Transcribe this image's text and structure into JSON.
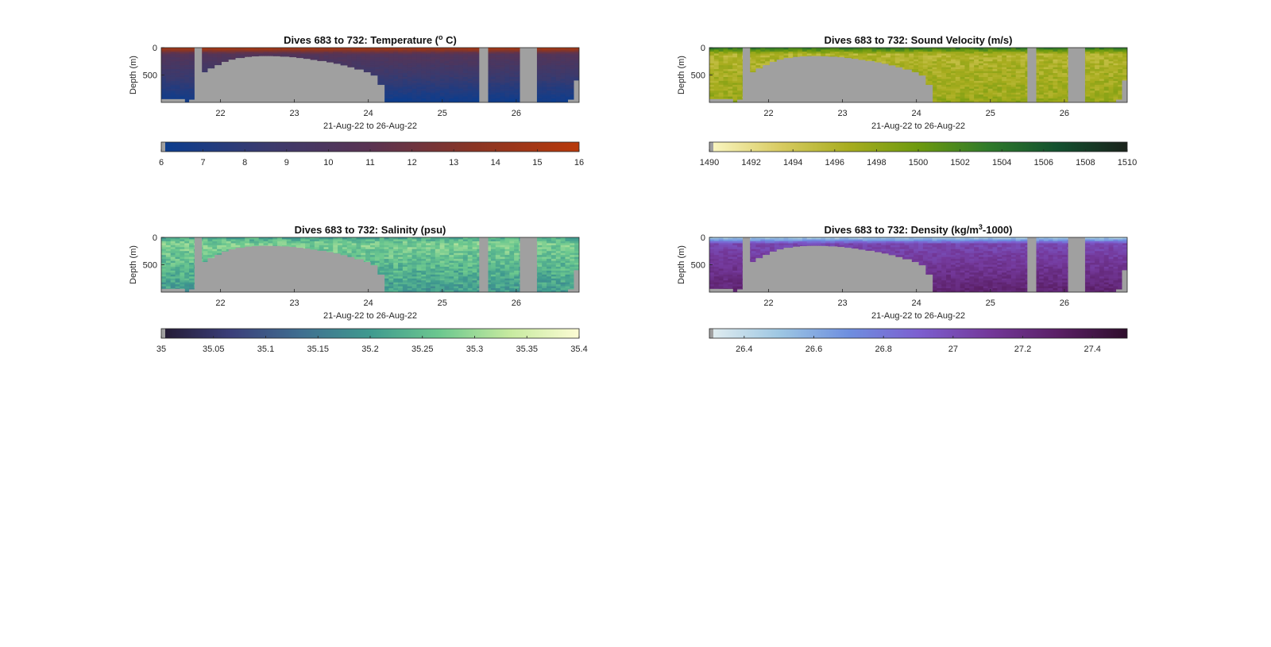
{
  "chart_data": [
    {
      "type": "heatmap",
      "title": "Dives 683 to 732: Temperature (",
      "title_sup": "o",
      "title_tail": " C)",
      "ylabel": "Depth (m)",
      "xlabel": "21-Aug-22 to 26-Aug-22",
      "x_range": [
        21.2,
        26.85
      ],
      "x_ticks": [
        "22",
        "23",
        "24",
        "25",
        "26"
      ],
      "y_range": [
        0,
        1000
      ],
      "y_reversed": true,
      "y_ticks": [
        "0",
        "500"
      ],
      "colorbar": {
        "range": [
          6,
          16
        ],
        "ticks": [
          "6",
          "7",
          "8",
          "9",
          "10",
          "11",
          "12",
          "13",
          "14",
          "15",
          "16"
        ],
        "colors": [
          "#0a3d8f",
          "#3a3a6e",
          "#5a3352",
          "#8a3524",
          "#b8390a"
        ]
      },
      "profile": {
        "surface": 0.95,
        "mid": 0.45,
        "deep": 0.02,
        "noise": 0.03
      }
    },
    {
      "type": "heatmap",
      "title": "Dives 683 to 732: Sound Velocity (m/s)",
      "title_sup": "",
      "title_tail": "",
      "ylabel": "Depth (m)",
      "xlabel": "21-Aug-22 to 26-Aug-22",
      "x_range": [
        21.2,
        26.85
      ],
      "x_ticks": [
        "22",
        "23",
        "24",
        "25",
        "26"
      ],
      "y_range": [
        0,
        1000
      ],
      "y_reversed": true,
      "y_ticks": [
        "0",
        "500"
      ],
      "colorbar": {
        "range": [
          1490,
          1510
        ],
        "ticks": [
          "1490",
          "1492",
          "1494",
          "1496",
          "1498",
          "1500",
          "1502",
          "1504",
          "1506",
          "1508",
          "1510"
        ],
        "colors": [
          "#fbf7c4",
          "#d9cc63",
          "#a8ad1f",
          "#6d9a0e",
          "#2f7a2a",
          "#13502f",
          "#1a221b"
        ]
      },
      "profile": {
        "surface": 0.7,
        "mid": 0.3,
        "deep": 0.38,
        "noise": 0.07
      }
    },
    {
      "type": "heatmap",
      "title": "Dives 683 to 732: Salinity (psu)",
      "title_sup": "",
      "title_tail": "",
      "ylabel": "Depth (m)",
      "xlabel": "21-Aug-22 to 26-Aug-22",
      "x_range": [
        21.2,
        26.85
      ],
      "x_ticks": [
        "22",
        "23",
        "24",
        "25",
        "26"
      ],
      "y_range": [
        0,
        1000
      ],
      "y_reversed": true,
      "y_ticks": [
        "0",
        "500"
      ],
      "colorbar": {
        "range": [
          35,
          35.4
        ],
        "ticks": [
          "35",
          "35.05",
          "35.1",
          "35.15",
          "35.2",
          "35.25",
          "35.3",
          "35.35",
          "35.4"
        ],
        "colors": [
          "#231a33",
          "#3b3f7a",
          "#3f6e90",
          "#3f9a8f",
          "#6cc88f",
          "#c6ea9f",
          "#fcfcd4"
        ]
      },
      "profile": {
        "surface": 0.55,
        "mid": 0.7,
        "deep": 0.5,
        "noise": 0.09
      }
    },
    {
      "type": "heatmap",
      "title": "Dives 683 to 732: Density (kg/m",
      "title_sup": "3",
      "title_tail": "-1000)",
      "ylabel": "Depth (m)",
      "xlabel": "21-Aug-22 to 26-Aug-22",
      "x_range": [
        21.2,
        26.85
      ],
      "x_ticks": [
        "22",
        "23",
        "24",
        "25",
        "26"
      ],
      "y_range": [
        0,
        1000
      ],
      "y_reversed": true,
      "y_ticks": [
        "0",
        "500"
      ],
      "colorbar": {
        "range": [
          26.3,
          27.5
        ],
        "ticks": [
          "26.4",
          "26.6",
          "26.8",
          "27",
          "27.2",
          "27.4"
        ],
        "tick_values": [
          26.4,
          26.6,
          26.8,
          27.0,
          27.2,
          27.4
        ],
        "colors": [
          "#e3eef0",
          "#9ec7e3",
          "#6e8fdf",
          "#7c5fd0",
          "#74399b",
          "#5a1f66",
          "#2e0d2b"
        ]
      },
      "profile": {
        "surface": 0.1,
        "mid": 0.6,
        "deep": 0.8,
        "noise": 0.05
      }
    }
  ],
  "gaps": {
    "missing_data_color": "#a0a0a0",
    "bathymetry_depths_m": [
      [
        21.55,
        950
      ],
      [
        21.7,
        450
      ],
      [
        21.8,
        380
      ],
      [
        21.9,
        320
      ],
      [
        22.0,
        260
      ],
      [
        22.1,
        220
      ],
      [
        22.2,
        190
      ],
      [
        22.3,
        170
      ],
      [
        22.4,
        160
      ],
      [
        22.5,
        155
      ],
      [
        22.6,
        155
      ],
      [
        22.7,
        158
      ],
      [
        22.8,
        165
      ],
      [
        22.9,
        175
      ],
      [
        23.0,
        190
      ],
      [
        23.1,
        205
      ],
      [
        23.2,
        225
      ],
      [
        23.3,
        245
      ],
      [
        23.4,
        270
      ],
      [
        23.5,
        295
      ],
      [
        23.6,
        325
      ],
      [
        23.7,
        360
      ],
      [
        23.8,
        400
      ],
      [
        23.9,
        450
      ],
      [
        24.0,
        510
      ],
      [
        24.1,
        680
      ],
      [
        24.2,
        1000
      ]
    ],
    "missing_columns": [
      [
        21.65,
        21.75
      ],
      [
        25.5,
        25.62
      ],
      [
        26.05,
        26.28
      ]
    ],
    "right_edge_floor": [
      [
        26.7,
        950
      ],
      [
        26.78,
        600
      ]
    ]
  }
}
